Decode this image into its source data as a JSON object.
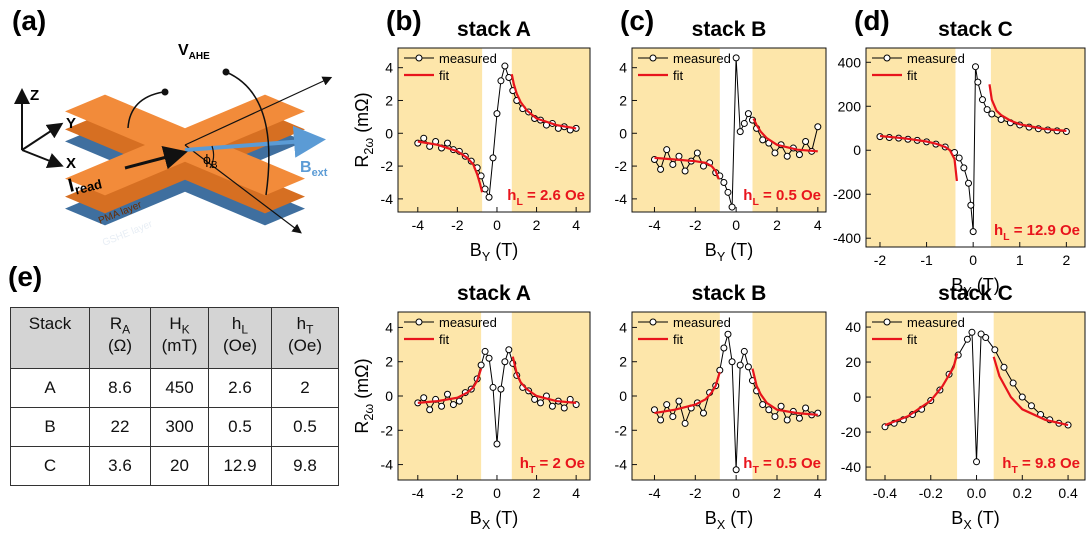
{
  "diagram": {
    "panel_label": "(a)",
    "axes": [
      "Z",
      "Y",
      "X"
    ],
    "v_label": [
      "V",
      "AHE"
    ],
    "i_label": [
      "I",
      "read"
    ],
    "b_label": [
      "B",
      "ext"
    ],
    "phi_label": [
      "ϕ",
      "B"
    ],
    "layers": [
      "PMA layer",
      "GSHE layer"
    ]
  },
  "table": {
    "panel_label": "(e)",
    "header": [
      [
        "Stack"
      ],
      [
        "R",
        "A",
        "(Ω)"
      ],
      [
        "H",
        "K",
        "(mT)"
      ],
      [
        "h",
        "L",
        "(Oe)"
      ],
      [
        "h",
        "T",
        "(Oe)"
      ]
    ],
    "rows": [
      [
        "A",
        "8.6",
        "450",
        "2.6",
        "2"
      ],
      [
        "B",
        "22",
        "300",
        "0.5",
        "0.5"
      ],
      [
        "C",
        "3.6",
        "20",
        "12.9",
        "9.8"
      ]
    ]
  },
  "chart_data": [
    {
      "type": "line",
      "panel_label": "(b)",
      "title": "stack A",
      "xlabel": [
        "B",
        "Y",
        " (T)"
      ],
      "ylabel": [
        "R",
        "2ω",
        " (mΩ)"
      ],
      "xlim": [
        -5,
        4.7
      ],
      "ylim": [
        -4.8,
        5.2
      ],
      "xticks": [
        -4,
        -2,
        0,
        2,
        4
      ],
      "yticks": [
        -4,
        -2,
        0,
        2,
        4
      ],
      "shaded": [
        [
          -5,
          -0.75
        ],
        [
          0.75,
          4.7
        ]
      ],
      "shade_color": "#fde6aa",
      "legend": "upper left",
      "annotation": [
        "h",
        "L",
        " = 2.6 Oe"
      ],
      "annotation_color": "#e8141c",
      "series": [
        {
          "name": "measured",
          "color": "#000000",
          "marker": "circle",
          "x": [
            -4,
            -3.7,
            -3.4,
            -3.1,
            -2.8,
            -2.5,
            -2.2,
            -1.9,
            -1.6,
            -1.3,
            -1.0,
            -0.8,
            -0.6,
            -0.4,
            -0.2,
            0,
            0.2,
            0.4,
            0.6,
            0.8,
            1.0,
            1.3,
            1.6,
            1.9,
            2.2,
            2.5,
            2.8,
            3.1,
            3.4,
            3.7,
            4
          ],
          "values": [
            -0.6,
            -0.3,
            -0.8,
            -0.5,
            -0.9,
            -0.6,
            -1.0,
            -1.1,
            -1.4,
            -1.7,
            -2.1,
            -2.6,
            -3.4,
            -3.9,
            -1.5,
            1.2,
            3.2,
            4.1,
            3.4,
            2.6,
            2.0,
            1.5,
            1.3,
            0.9,
            0.8,
            0.5,
            0.6,
            0.3,
            0.4,
            0.2,
            0.3
          ]
        },
        {
          "name": "fit",
          "color": "#e8141c",
          "x": [
            -4,
            -3,
            -2,
            -1.5,
            -1.2,
            -1,
            -0.85,
            -0.75,
            null,
            0.75,
            0.85,
            1,
            1.2,
            1.5,
            2,
            3,
            4
          ],
          "values": [
            -0.5,
            -0.7,
            -1.1,
            -1.5,
            -1.9,
            -2.5,
            -3.1,
            -3.6,
            null,
            3.6,
            3.0,
            2.4,
            1.9,
            1.4,
            0.9,
            0.5,
            0.3
          ]
        }
      ]
    },
    {
      "type": "line",
      "panel_label": "(c)",
      "title": "stack B",
      "xlabel": [
        "B",
        "Y",
        " (T)"
      ],
      "xlim": [
        -5.1,
        4.4
      ],
      "ylim": [
        -4.8,
        5.2
      ],
      "xticks": [
        -4,
        -2,
        0,
        2,
        4
      ],
      "yticks": [
        -4,
        -2,
        0,
        2,
        4
      ],
      "shaded": [
        [
          -5.1,
          -0.8
        ],
        [
          0.8,
          4.4
        ]
      ],
      "shade_color": "#fde6aa",
      "legend": "upper left",
      "annotation": [
        "h",
        "L",
        " = 0.5 Oe"
      ],
      "annotation_color": "#e8141c",
      "series": [
        {
          "name": "measured",
          "color": "#000000",
          "marker": "circle",
          "x": [
            -4,
            -3.7,
            -3.4,
            -3.1,
            -2.8,
            -2.5,
            -2.2,
            -1.9,
            -1.6,
            -1.3,
            -1.0,
            -0.8,
            -0.6,
            -0.4,
            -0.2,
            0,
            0.2,
            0.4,
            0.6,
            0.8,
            1.0,
            1.3,
            1.6,
            1.9,
            2.2,
            2.5,
            2.8,
            3.1,
            3.4,
            3.7,
            4
          ],
          "values": [
            -1.6,
            -2.2,
            -1.0,
            -1.9,
            -1.4,
            -2.3,
            -1.7,
            -1.2,
            -2.0,
            -1.8,
            -2.4,
            -2.6,
            -3.0,
            -3.6,
            -4.5,
            4.6,
            0.1,
            0.6,
            1.2,
            0.8,
            0.3,
            -0.4,
            -0.6,
            -1.2,
            -0.7,
            -1.4,
            -0.9,
            -1.3,
            -0.5,
            -1.1,
            0.4
          ]
        },
        {
          "name": "fit",
          "color": "#e8141c",
          "x": [
            -4,
            -3,
            -2,
            -1.5,
            -1.2,
            -1,
            -0.85,
            null,
            0.85,
            1,
            1.2,
            1.5,
            2,
            3,
            4
          ],
          "values": [
            -1.5,
            -1.6,
            -1.7,
            -1.8,
            -2.0,
            -2.3,
            -2.8,
            null,
            0.9,
            0.5,
            0.1,
            -0.3,
            -0.7,
            -1.0,
            -1.1
          ]
        }
      ]
    },
    {
      "type": "line",
      "panel_label": "(d)",
      "title": "stack C",
      "xlabel": [
        "B",
        "Y",
        " (T)"
      ],
      "xlim": [
        -2.3,
        2.4
      ],
      "ylim": [
        -440,
        465
      ],
      "xticks": [
        -2,
        -1,
        0,
        1,
        2
      ],
      "yticks": [
        -400,
        -200,
        0,
        200,
        400
      ],
      "shaded": [
        [
          -2.3,
          -0.38
        ],
        [
          0.38,
          2.4
        ]
      ],
      "shade_color": "#fde6aa",
      "legend": "upper left",
      "annotation": [
        "h",
        "L",
        " = 12.9 Oe"
      ],
      "annotation_color": "#e8141c",
      "series": [
        {
          "name": "measured",
          "color": "#000000",
          "marker": "circle",
          "x": [
            -2,
            -1.8,
            -1.6,
            -1.4,
            -1.2,
            -1.0,
            -0.8,
            -0.6,
            -0.4,
            -0.3,
            -0.2,
            -0.1,
            -0.05,
            0,
            0.05,
            0.1,
            0.2,
            0.3,
            0.4,
            0.6,
            0.8,
            1.0,
            1.2,
            1.4,
            1.6,
            1.8,
            2
          ],
          "values": [
            62,
            58,
            55,
            50,
            45,
            38,
            28,
            15,
            -10,
            -35,
            -80,
            -150,
            -250,
            -370,
            380,
            310,
            230,
            185,
            165,
            140,
            125,
            115,
            105,
            98,
            92,
            88,
            85
          ]
        },
        {
          "name": "fit",
          "color": "#e8141c",
          "x": [
            -2,
            -1.5,
            -1,
            -0.8,
            -0.6,
            -0.5,
            -0.4,
            -0.35,
            null,
            0.35,
            0.4,
            0.5,
            0.6,
            0.8,
            1,
            1.5,
            2
          ],
          "values": [
            65,
            55,
            40,
            30,
            15,
            0,
            -40,
            -140,
            null,
            300,
            230,
            180,
            160,
            135,
            118,
            98,
            88
          ]
        }
      ]
    },
    {
      "type": "line",
      "title": "stack A",
      "xlabel": [
        "B",
        "X",
        " (T)"
      ],
      "ylabel": [
        "R",
        "2ω",
        " (mΩ)"
      ],
      "xlim": [
        -5,
        4.7
      ],
      "ylim": [
        -4.9,
        4.9
      ],
      "xticks": [
        -4,
        -2,
        0,
        2,
        4
      ],
      "yticks": [
        -4,
        -2,
        0,
        2,
        4
      ],
      "shaded": [
        [
          -5,
          -0.8
        ],
        [
          0.75,
          4.7
        ]
      ],
      "shade_color": "#fde6aa",
      "legend": "upper left",
      "annotation": [
        "h",
        "T",
        " = 2 Oe"
      ],
      "annotation_color": "#e8141c",
      "series": [
        {
          "name": "measured",
          "color": "#000000",
          "marker": "circle",
          "x": [
            -4,
            -3.7,
            -3.4,
            -3.1,
            -2.8,
            -2.5,
            -2.2,
            -1.9,
            -1.6,
            -1.3,
            -1.0,
            -0.8,
            -0.6,
            -0.4,
            -0.2,
            0,
            0.2,
            0.4,
            0.6,
            0.8,
            1.0,
            1.3,
            1.6,
            1.9,
            2.2,
            2.5,
            2.8,
            3.1,
            3.4,
            3.7,
            4
          ],
          "values": [
            -0.4,
            -0.1,
            -0.8,
            -0.2,
            -0.6,
            0.1,
            -0.5,
            -0.3,
            0.2,
            0.4,
            1.0,
            1.8,
            2.6,
            2.2,
            0.5,
            -2.8,
            0.4,
            2.0,
            2.7,
            1.9,
            1.2,
            0.5,
            0.3,
            -0.2,
            -0.4,
            0.0,
            -0.6,
            -0.3,
            -0.7,
            -0.2,
            -0.5
          ]
        },
        {
          "name": "fit",
          "color": "#e8141c",
          "x": [
            -4,
            -3,
            -2,
            -1.5,
            -1.2,
            -1,
            -0.8,
            null,
            0.8,
            1,
            1.2,
            1.5,
            2,
            3,
            4
          ],
          "values": [
            -0.4,
            -0.3,
            -0.1,
            0.2,
            0.5,
            0.9,
            1.6,
            null,
            2.3,
            1.3,
            0.8,
            0.4,
            0.0,
            -0.3,
            -0.4
          ]
        }
      ]
    },
    {
      "type": "line",
      "title": "stack B",
      "xlabel": [
        "B",
        "X",
        " (T)"
      ],
      "xlim": [
        -5.1,
        4.4
      ],
      "ylim": [
        -4.9,
        4.9
      ],
      "xticks": [
        -4,
        -2,
        0,
        2,
        4
      ],
      "yticks": [
        -4,
        -2,
        0,
        2,
        4
      ],
      "shaded": [
        [
          -5.1,
          -0.8
        ],
        [
          0.8,
          4.4
        ]
      ],
      "shade_color": "#fde6aa",
      "legend": "upper left",
      "annotation": [
        "h",
        "T",
        " = 0.5 Oe"
      ],
      "annotation_color": "#e8141c",
      "series": [
        {
          "name": "measured",
          "color": "#000000",
          "marker": "circle",
          "x": [
            -4,
            -3.7,
            -3.4,
            -3.1,
            -2.8,
            -2.5,
            -2.2,
            -1.9,
            -1.6,
            -1.3,
            -1.0,
            -0.8,
            -0.6,
            -0.4,
            -0.2,
            0,
            0.2,
            0.4,
            0.6,
            0.8,
            1.0,
            1.3,
            1.6,
            1.9,
            2.2,
            2.5,
            2.8,
            3.1,
            3.4,
            3.7,
            4
          ],
          "values": [
            -0.8,
            -1.4,
            -0.5,
            -1.2,
            -0.3,
            -1.6,
            -0.7,
            -0.4,
            -1.0,
            0.2,
            0.6,
            1.5,
            2.8,
            3.6,
            2.0,
            -4.3,
            1.8,
            2.6,
            1.7,
            0.9,
            0.3,
            -0.5,
            -0.8,
            -1.2,
            -0.6,
            -1.4,
            -0.9,
            -1.3,
            -0.7,
            -1.1,
            -1.0
          ]
        },
        {
          "name": "fit",
          "color": "#e8141c",
          "x": [
            -4,
            -3,
            -2,
            -1.5,
            -1.2,
            -1,
            -0.8,
            null,
            0.8,
            1,
            1.2,
            1.5,
            2,
            3,
            4
          ],
          "values": [
            -1.0,
            -0.8,
            -0.5,
            -0.2,
            0.2,
            0.6,
            1.4,
            null,
            1.6,
            0.6,
            0.1,
            -0.4,
            -0.8,
            -1.0,
            -1.1
          ]
        }
      ]
    },
    {
      "type": "line",
      "title": "stack C",
      "xlabel": [
        "B",
        "X",
        " (T)"
      ],
      "xlim": [
        -0.483,
        0.474
      ],
      "ylim": [
        -47.4,
        48.6
      ],
      "xticks": [
        -0.4,
        -0.2,
        {
          "value": 0,
          "label": "0.0"
        },
        0.2,
        0.4
      ],
      "yticks": [
        -40,
        -20,
        0,
        20,
        40
      ],
      "shaded": [
        [
          -0.483,
          -0.085
        ],
        [
          0.075,
          0.474
        ]
      ],
      "shade_color": "#fde6aa",
      "legend": "upper left",
      "annotation": [
        "h",
        "T",
        " = 9.8 Oe"
      ],
      "annotation_color": "#e8141c",
      "series": [
        {
          "name": "measured",
          "color": "#000000",
          "marker": "circle",
          "x": [
            -0.4,
            -0.36,
            -0.32,
            -0.28,
            -0.24,
            -0.2,
            -0.16,
            -0.12,
            -0.08,
            -0.04,
            -0.02,
            0,
            0.02,
            0.04,
            0.08,
            0.12,
            0.16,
            0.2,
            0.24,
            0.28,
            0.32,
            0.36,
            0.4
          ],
          "values": [
            -17,
            -15,
            -13,
            -10,
            -7,
            -2,
            4,
            13,
            24,
            33,
            37,
            -37,
            36,
            34,
            27,
            17,
            8,
            0,
            -5,
            -10,
            -13,
            -15,
            -16
          ]
        },
        {
          "name": "fit",
          "color": "#e8141c",
          "x": [
            -0.4,
            -0.3,
            -0.2,
            -0.15,
            -0.1,
            -0.085,
            null,
            0.075,
            0.1,
            0.15,
            0.2,
            0.3,
            0.4
          ],
          "values": [
            -16,
            -11,
            -2,
            6,
            17,
            25,
            null,
            23,
            12,
            0,
            -7,
            -13,
            -16
          ]
        }
      ]
    }
  ]
}
